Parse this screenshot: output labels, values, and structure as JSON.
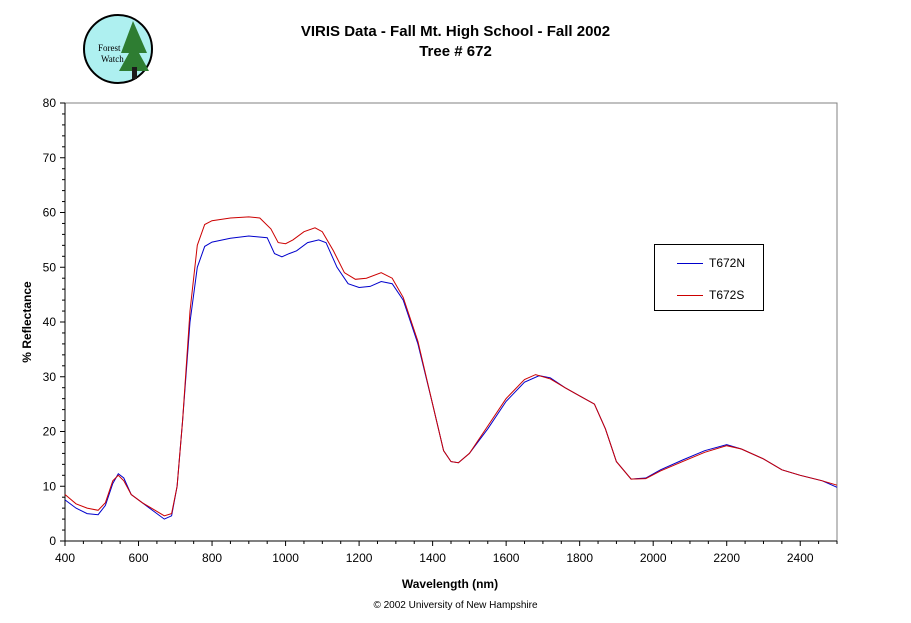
{
  "header": {
    "title_line1": "VIRIS Data - Fall Mt. High School - Fall 2002",
    "title_line2": "Tree # 672"
  },
  "logo": {
    "text_line1": "Forest",
    "text_line2": "Watch",
    "colors": {
      "background": "#aef0f0",
      "tree": "#2e7d32",
      "trunk": "#1b1b1b"
    }
  },
  "footer": {
    "copyright": "© 2002 University of New Hampshire"
  },
  "chart_data": {
    "type": "line",
    "title": "VIRIS Data - Fall Mt. High School - Fall 2002 Tree # 672",
    "xlabel": "Wavelength (nm)",
    "ylabel": "% Reflectance",
    "xlim": [
      400,
      2500
    ],
    "ylim": [
      0,
      80
    ],
    "x_ticks": [
      400,
      600,
      800,
      1000,
      1200,
      1400,
      1600,
      1800,
      2000,
      2200,
      2400
    ],
    "y_ticks": [
      0,
      10,
      20,
      30,
      40,
      50,
      60,
      70,
      80
    ],
    "grid": false,
    "legend_position": "right",
    "series": [
      {
        "name": "T672N",
        "color": "#0000cc",
        "points": [
          [
            400,
            7.5
          ],
          [
            430,
            6.0
          ],
          [
            460,
            5.0
          ],
          [
            490,
            4.8
          ],
          [
            510,
            6.5
          ],
          [
            530,
            10.5
          ],
          [
            545,
            12.3
          ],
          [
            560,
            11.5
          ],
          [
            580,
            8.5
          ],
          [
            610,
            7.0
          ],
          [
            640,
            5.5
          ],
          [
            670,
            4.0
          ],
          [
            690,
            4.6
          ],
          [
            705,
            10.0
          ],
          [
            720,
            22.0
          ],
          [
            740,
            40.0
          ],
          [
            760,
            50.0
          ],
          [
            780,
            53.8
          ],
          [
            800,
            54.6
          ],
          [
            850,
            55.3
          ],
          [
            900,
            55.7
          ],
          [
            950,
            55.4
          ],
          [
            970,
            52.5
          ],
          [
            990,
            51.9
          ],
          [
            1010,
            52.5
          ],
          [
            1030,
            53.0
          ],
          [
            1060,
            54.5
          ],
          [
            1090,
            55.0
          ],
          [
            1110,
            54.5
          ],
          [
            1140,
            50.0
          ],
          [
            1170,
            47.0
          ],
          [
            1200,
            46.3
          ],
          [
            1230,
            46.5
          ],
          [
            1260,
            47.4
          ],
          [
            1290,
            47.0
          ],
          [
            1320,
            44.0
          ],
          [
            1360,
            36.0
          ],
          [
            1400,
            25.0
          ],
          [
            1430,
            16.5
          ],
          [
            1450,
            14.5
          ],
          [
            1470,
            14.3
          ],
          [
            1500,
            16.0
          ],
          [
            1550,
            20.5
          ],
          [
            1600,
            25.5
          ],
          [
            1650,
            29.0
          ],
          [
            1690,
            30.2
          ],
          [
            1720,
            29.8
          ],
          [
            1760,
            28.0
          ],
          [
            1800,
            26.5
          ],
          [
            1840,
            25.0
          ],
          [
            1870,
            20.5
          ],
          [
            1900,
            14.5
          ],
          [
            1940,
            11.3
          ],
          [
            1980,
            11.5
          ],
          [
            2020,
            13.0
          ],
          [
            2080,
            14.8
          ],
          [
            2140,
            16.5
          ],
          [
            2200,
            17.6
          ],
          [
            2240,
            16.8
          ],
          [
            2300,
            15.0
          ],
          [
            2350,
            13.0
          ],
          [
            2400,
            12.0
          ],
          [
            2460,
            11.0
          ],
          [
            2500,
            9.8
          ]
        ]
      },
      {
        "name": "T672S",
        "color": "#cc0000",
        "points": [
          [
            400,
            8.5
          ],
          [
            430,
            6.8
          ],
          [
            460,
            6.0
          ],
          [
            490,
            5.6
          ],
          [
            510,
            7.0
          ],
          [
            530,
            11.0
          ],
          [
            545,
            12.0
          ],
          [
            560,
            11.0
          ],
          [
            580,
            8.5
          ],
          [
            610,
            7.0
          ],
          [
            640,
            5.8
          ],
          [
            670,
            4.6
          ],
          [
            690,
            5.0
          ],
          [
            705,
            10.0
          ],
          [
            720,
            22.0
          ],
          [
            740,
            42.0
          ],
          [
            760,
            54.0
          ],
          [
            780,
            57.8
          ],
          [
            800,
            58.5
          ],
          [
            850,
            59.0
          ],
          [
            900,
            59.2
          ],
          [
            930,
            59.0
          ],
          [
            960,
            57.0
          ],
          [
            980,
            54.5
          ],
          [
            1000,
            54.3
          ],
          [
            1020,
            55.0
          ],
          [
            1050,
            56.5
          ],
          [
            1080,
            57.2
          ],
          [
            1100,
            56.5
          ],
          [
            1130,
            53.0
          ],
          [
            1160,
            49.0
          ],
          [
            1190,
            47.8
          ],
          [
            1220,
            48.0
          ],
          [
            1260,
            49.0
          ],
          [
            1290,
            48.0
          ],
          [
            1320,
            44.5
          ],
          [
            1360,
            36.5
          ],
          [
            1400,
            25.0
          ],
          [
            1430,
            16.5
          ],
          [
            1450,
            14.5
          ],
          [
            1470,
            14.3
          ],
          [
            1500,
            16.0
          ],
          [
            1550,
            21.0
          ],
          [
            1600,
            26.0
          ],
          [
            1650,
            29.5
          ],
          [
            1680,
            30.4
          ],
          [
            1720,
            29.6
          ],
          [
            1760,
            28.0
          ],
          [
            1800,
            26.5
          ],
          [
            1840,
            25.0
          ],
          [
            1870,
            20.5
          ],
          [
            1900,
            14.5
          ],
          [
            1940,
            11.3
          ],
          [
            1980,
            11.4
          ],
          [
            2020,
            12.8
          ],
          [
            2080,
            14.5
          ],
          [
            2140,
            16.2
          ],
          [
            2200,
            17.4
          ],
          [
            2240,
            16.8
          ],
          [
            2300,
            15.0
          ],
          [
            2350,
            13.0
          ],
          [
            2400,
            12.0
          ],
          [
            2460,
            11.0
          ],
          [
            2500,
            10.2
          ]
        ]
      }
    ]
  }
}
